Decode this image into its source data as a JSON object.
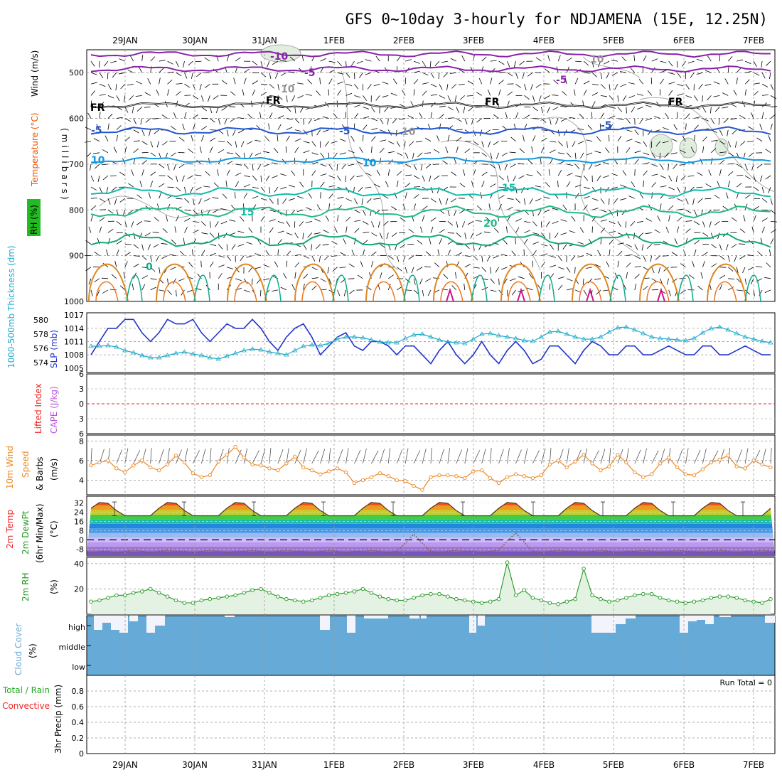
{
  "title": "GFS 0~10day 3-hourly for NDJAMENA (15E, 12.25N)",
  "dates": [
    "29JAN",
    "30JAN",
    "31JAN",
    "1FEB",
    "2FEB",
    "3FEB",
    "4FEB",
    "5FEB",
    "6FEB",
    "7FEB"
  ],
  "colors": {
    "rh": "#22bb22",
    "temp": "#ee5500",
    "wind": "#000000",
    "thickness": "#22aacc",
    "slp": "#2233cc",
    "lifted_index": "#ee2222",
    "cape": "#bb55dd",
    "wind10": "#ee8822",
    "rh2m": "#229922",
    "cloud": "#66aad8",
    "precip_total": "#22aa22",
    "precip_conv": "#ee2222"
  },
  "panels": {
    "upper": {
      "label_rh": "RH (%)",
      "label_temp": "Temperature (°C)",
      "label_wind": "Wind (m/s)",
      "ylabel": "(millibars)",
      "yticks": [
        "500",
        "600",
        "700",
        "800",
        "900",
        "1000"
      ],
      "contour_labels": [
        "-10",
        "-5",
        "-5",
        "FR",
        "FR",
        "FR",
        "FR",
        "-5",
        "-5",
        "-5",
        "10",
        "10",
        "15",
        "15",
        "20",
        "0",
        "10",
        "10",
        "10"
      ]
    },
    "slp": {
      "label_thick": "1000-500mb Thickness (dm)",
      "label_slp": "SLP (mb)",
      "yticks_left": [
        "580",
        "578",
        "576",
        "574"
      ],
      "yticks_right": [
        "1017",
        "1014",
        "1011",
        "1008",
        "1005"
      ]
    },
    "cape": {
      "label_li": "Lifted Index",
      "label_cape": "CAPE (J/kg)",
      "yticks": [
        "6",
        "3",
        "0",
        "3",
        "6"
      ]
    },
    "wind10": {
      "label_a": "10m Wind",
      "label_b": "Speed",
      "label_c": "& Barbs",
      "unit": "(m/s)",
      "yticks": [
        "8",
        "6",
        "4"
      ]
    },
    "temp2m": {
      "label_a": "2m Temp",
      "label_b": "2m DewPt",
      "label_c": "(6hr Min/Max)",
      "unit": "(°C)",
      "yticks": [
        "32",
        "24",
        "16",
        "8",
        "0",
        "-8"
      ]
    },
    "rh2m": {
      "label": "2m RH",
      "unit": "(%)",
      "yticks": [
        "40",
        "20"
      ]
    },
    "cloud": {
      "label": "Cloud Cover",
      "unit": "(%)",
      "levels": [
        "high",
        "middle",
        "low"
      ]
    },
    "precip": {
      "label_a": "Total / Rain",
      "label_b": "Convective",
      "ylabel": "3hr Precip (mm)",
      "run_total": "Run Total = 0",
      "yticks": [
        "0.8",
        "0.6",
        "0.4",
        "0.2",
        "0"
      ]
    }
  },
  "chart_data": {
    "type": "line",
    "x_step_hours": 3,
    "x_start": "28JAN 12Z",
    "series": [
      {
        "name": "SLP (mb)",
        "values": [
          1008,
          1011,
          1014,
          1014,
          1016,
          1016,
          1013,
          1011,
          1013,
          1016,
          1015,
          1015,
          1016,
          1013,
          1011,
          1013,
          1015,
          1014,
          1014,
          1016,
          1014,
          1011,
          1009,
          1012,
          1014,
          1015,
          1012,
          1008,
          1010,
          1012,
          1013,
          1010,
          1009,
          1011,
          1011,
          1010,
          1008,
          1010,
          1010,
          1008,
          1006,
          1009,
          1011,
          1008,
          1006,
          1008,
          1011,
          1008,
          1006,
          1009,
          1011,
          1009,
          1006,
          1007,
          1010,
          1010,
          1008,
          1006,
          1009,
          1011,
          1010,
          1008,
          1008,
          1010,
          1010,
          1008,
          1008,
          1009,
          1010,
          1009,
          1008,
          1008,
          1010,
          1010,
          1008,
          1008,
          1009,
          1010,
          1009,
          1008,
          1008
        ]
      },
      {
        "name": "1000-500mb Thickness (dm)",
        "values": [
          576.3,
          576.3,
          576.4,
          576.2,
          575.7,
          575.4,
          575.0,
          574.7,
          574.7,
          575.0,
          575.3,
          575.5,
          575.2,
          575.0,
          574.7,
          574.5,
          574.9,
          575.3,
          575.7,
          575.9,
          575.8,
          575.5,
          575.3,
          575.1,
          575.7,
          576.3,
          576.5,
          576.4,
          576.7,
          577.3,
          577.6,
          577.6,
          577.5,
          577.2,
          576.9,
          576.8,
          576.8,
          577.4,
          577.9,
          578.0,
          577.6,
          577.2,
          576.9,
          576.8,
          576.7,
          577.3,
          578.0,
          578.1,
          577.8,
          577.6,
          577.4,
          577.1,
          577.0,
          577.6,
          578.3,
          578.4,
          578.0,
          577.6,
          577.3,
          577.3,
          577.6,
          578.3,
          578.9,
          579.0,
          578.6,
          578.1,
          577.6,
          577.4,
          577.3,
          577.2,
          577.1,
          577.4,
          578.2,
          578.8,
          579.0,
          578.6,
          578.1,
          577.6,
          577.3,
          577.0,
          576.8
        ]
      },
      {
        "name": "10m Wind Speed (m/s)",
        "values": [
          5.5,
          5.8,
          6.0,
          5.2,
          4.8,
          5.5,
          6.0,
          5.3,
          5.0,
          5.6,
          6.5,
          5.8,
          4.7,
          4.3,
          4.5,
          5.9,
          6.6,
          7.4,
          6.3,
          5.6,
          5.5,
          5.2,
          5.0,
          5.7,
          6.4,
          5.3,
          5.0,
          4.6,
          4.9,
          5.2,
          4.8,
          3.7,
          4.0,
          4.3,
          4.7,
          4.4,
          4.0,
          3.9,
          3.4,
          3.0,
          4.3,
          4.5,
          4.5,
          4.4,
          4.2,
          4.9,
          5.0,
          4.2,
          3.7,
          4.3,
          4.6,
          4.4,
          4.2,
          4.5,
          5.6,
          6.0,
          5.3,
          5.9,
          6.6,
          5.7,
          5.0,
          5.4,
          6.6,
          5.8,
          4.8,
          4.3,
          4.6,
          5.7,
          6.3,
          5.3,
          4.6,
          4.5,
          5.1,
          5.8,
          6.1,
          6.5,
          5.4,
          5.2,
          6.0,
          5.6,
          5.3
        ]
      },
      {
        "name": "2m Temp (°C)",
        "min": 19,
        "max": 33
      },
      {
        "name": "2m DewPt (°C)",
        "values": [
          -11,
          -10,
          -10,
          -11,
          -10,
          -9,
          -10,
          -11,
          -10,
          -9,
          -10,
          -10,
          -11,
          -10,
          -9,
          -10,
          -11,
          -10,
          -10,
          -9,
          -10,
          -11,
          -10,
          -9,
          -10,
          -10,
          -11,
          -10,
          -9,
          -10,
          -11,
          -10,
          -10,
          -9,
          -10,
          -11,
          -10,
          -3,
          5,
          -3,
          -10,
          -11,
          -10,
          -9,
          -10,
          -10,
          -11,
          -10,
          -9,
          -1,
          6,
          -2,
          -10,
          -11,
          -10,
          -9,
          -10,
          -10,
          -11,
          -10,
          -9,
          -10,
          -11,
          -10,
          -10,
          -9,
          -10,
          -11,
          -10,
          -9,
          -10,
          -10,
          -11,
          -10,
          -9,
          -10,
          -11,
          -10,
          -10,
          -9,
          -10
        ]
      },
      {
        "name": "2m RH (%)",
        "values": [
          10,
          11,
          13,
          15,
          15,
          17,
          18,
          20,
          17,
          14,
          11,
          9,
          9,
          11,
          12,
          13,
          14,
          15,
          17,
          19,
          20,
          17,
          14,
          12,
          11,
          10,
          11,
          13,
          15,
          16,
          17,
          18,
          20,
          17,
          14,
          12,
          11,
          11,
          13,
          15,
          16,
          16,
          14,
          12,
          11,
          10,
          9,
          10,
          12,
          41,
          15,
          19,
          13,
          11,
          9,
          8,
          10,
          12,
          36,
          15,
          12,
          10,
          11,
          13,
          15,
          16,
          16,
          13,
          11,
          10,
          9,
          10,
          11,
          13,
          14,
          14,
          13,
          11,
          10,
          9,
          12
        ]
      },
      {
        "name": "Lifted Index",
        "values": [
          0
        ]
      },
      {
        "name": "3hr Precip (mm)",
        "values": [
          0
        ]
      }
    ],
    "ylim_slp": [
      1005,
      1017
    ],
    "ylim_thickness": [
      573,
      581
    ],
    "ylim_wind10": [
      2.5,
      8.5
    ],
    "ylim_temp2m": [
      -14,
      38
    ],
    "ylim_rh2m": [
      0,
      45
    ],
    "ylim_precip": [
      0,
      1
    ],
    "cloud_high": [
      30,
      50,
      70,
      40,
      0,
      0,
      40,
      0,
      80,
      0,
      60,
      0,
      0,
      0,
      0,
      0,
      0,
      0,
      0,
      0,
      0,
      20,
      0,
      0,
      0,
      0,
      0,
      0,
      0,
      0,
      0,
      0,
      0,
      0,
      0,
      0,
      0,
      0,
      0,
      80,
      0,
      0,
      0,
      0,
      0,
      0,
      0,
      0,
      0,
      0,
      0,
      0,
      0,
      0,
      0,
      0,
      0,
      0,
      0,
      0,
      0,
      0,
      0,
      0,
      0,
      0,
      0,
      0,
      0,
      0,
      0,
      0,
      0,
      0,
      0,
      0,
      0,
      0,
      0,
      0,
      0
    ]
  }
}
